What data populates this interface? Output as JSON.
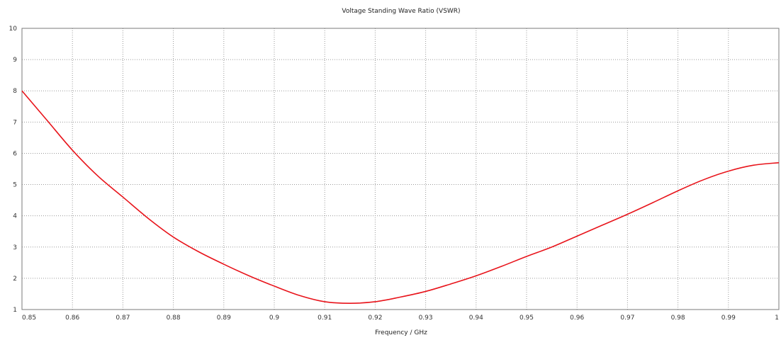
{
  "chart_data": {
    "type": "line",
    "title": "Voltage Standing Wave Ratio (VSWR)",
    "xlabel": "Frequency / GHz",
    "ylabel": "",
    "xlim": [
      0.85,
      1.0
    ],
    "ylim": [
      1,
      10
    ],
    "grid": true,
    "x_ticks": [
      "0.85",
      "0.86",
      "0.87",
      "0.88",
      "0.89",
      "0.9",
      "0.91",
      "0.92",
      "0.93",
      "0.94",
      "0.95",
      "0.96",
      "0.97",
      "0.98",
      "0.99",
      "1"
    ],
    "y_ticks": [
      "1",
      "2",
      "3",
      "4",
      "5",
      "6",
      "7",
      "8",
      "9",
      "10"
    ],
    "series": [
      {
        "color": "#e8141b",
        "x": [
          0.85,
          0.855,
          0.86,
          0.865,
          0.87,
          0.875,
          0.88,
          0.885,
          0.89,
          0.895,
          0.9,
          0.905,
          0.91,
          0.915,
          0.92,
          0.925,
          0.93,
          0.935,
          0.94,
          0.945,
          0.95,
          0.955,
          0.96,
          0.965,
          0.97,
          0.975,
          0.98,
          0.985,
          0.99,
          0.995,
          1.0
        ],
        "y": [
          8.0,
          7.05,
          6.1,
          5.28,
          4.6,
          3.92,
          3.32,
          2.85,
          2.45,
          2.08,
          1.75,
          1.45,
          1.25,
          1.2,
          1.25,
          1.4,
          1.58,
          1.82,
          2.08,
          2.38,
          2.7,
          3.0,
          3.35,
          3.7,
          4.05,
          4.42,
          4.8,
          5.15,
          5.43,
          5.62,
          5.7
        ]
      }
    ]
  }
}
